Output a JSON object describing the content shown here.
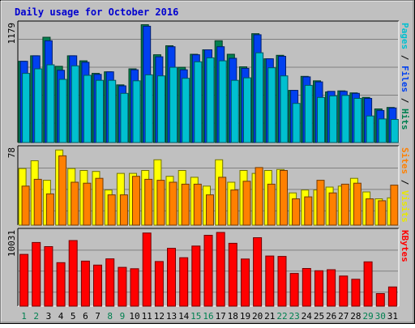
{
  "chart_data": {
    "type": "bar",
    "title": "Daily usage for October 2016",
    "categories": [
      "1",
      "2",
      "3",
      "4",
      "5",
      "6",
      "7",
      "8",
      "9",
      "10",
      "11",
      "12",
      "13",
      "14",
      "15",
      "16",
      "17",
      "18",
      "19",
      "20",
      "21",
      "22",
      "23",
      "24",
      "25",
      "26",
      "27",
      "28",
      "29",
      "30",
      "31"
    ],
    "weekend_days": [
      "1",
      "2",
      "8",
      "9",
      "15",
      "16",
      "22",
      "23",
      "29",
      "30"
    ],
    "panels": [
      {
        "id": "pages-files-hits",
        "max_label": "1179",
        "ymax": 1179,
        "right_labels": [
          {
            "text": "Pages",
            "color": "#00c0d0"
          },
          {
            "text": " / ",
            "color": "#000000"
          },
          {
            "text": "Files",
            "color": "#0040f0"
          },
          {
            "text": " / ",
            "color": "#000000"
          },
          {
            "text": "Hits",
            "color": "#008050"
          }
        ],
        "series": [
          {
            "name": "Hits",
            "color": "#008050",
            "values": [
              810,
              865,
              1050,
              760,
              865,
              815,
              690,
              705,
              575,
              735,
              1175,
              875,
              965,
              750,
              880,
              925,
              1015,
              880,
              755,
              1085,
              835,
              870,
              520,
              660,
              615,
              505,
              515,
              495,
              450,
              335,
              350
            ]
          },
          {
            "name": "Files",
            "color": "#0040f0",
            "values": [
              810,
              865,
              1015,
              720,
              865,
              800,
              680,
              705,
              565,
              725,
              1160,
              855,
              955,
              725,
              875,
              925,
              955,
              840,
              740,
              1075,
              835,
              860,
              520,
              655,
              605,
              510,
              510,
              490,
              440,
              320,
              345
            ]
          },
          {
            "name": "Pages",
            "color": "#00c0d0",
            "values": [
              690,
              735,
              775,
              630,
              765,
              670,
              620,
              620,
              490,
              615,
              675,
              665,
              750,
              640,
              805,
              845,
              815,
              620,
              645,
              895,
              745,
              665,
              390,
              570,
              450,
              465,
              470,
              440,
              265,
              235,
              230
            ]
          }
        ]
      },
      {
        "id": "visits-sites",
        "max_label": "78",
        "ymax": 78,
        "right_labels": [
          {
            "text": "Sites",
            "color": "#ff8000"
          },
          {
            "text": " / ",
            "color": "#000000"
          },
          {
            "text": "Visits",
            "color": "#e8e800"
          }
        ],
        "series": [
          {
            "name": "Visits",
            "color": "#ffff00",
            "values": [
              58,
              66,
              46,
              77,
              58,
              56,
              55,
              36,
              53,
              53,
              56,
              67,
              50,
              56,
              49,
              40,
              67,
              44,
              56,
              53,
              56,
              57,
              33,
              36,
              36,
              39,
              40,
              48,
              34,
              27,
              28
            ]
          },
          {
            "name": "Sites",
            "color": "#ff8000",
            "values": [
              40,
              47,
              32,
              71,
              44,
              43,
              48,
              31,
              31,
              50,
              47,
              46,
              44,
              42,
              42,
              31,
              49,
              36,
              45,
              59,
              42,
              56,
              27,
              29,
              46,
              33,
              42,
              43,
              27,
              25,
              41
            ]
          }
        ]
      },
      {
        "id": "kbytes",
        "max_label": "10031",
        "ymax": 10031,
        "right_labels": [
          {
            "text": "KBytes",
            "color": "#ff0000"
          }
        ],
        "series": [
          {
            "name": "KBytes",
            "color": "#ff0000",
            "values": [
              6965,
              8565,
              8015,
              5855,
              8830,
              6065,
              5530,
              6365,
              5220,
              5035,
              9845,
              6010,
              7790,
              6520,
              8085,
              9540,
              9920,
              8460,
              6350,
              9215,
              6750,
              6700,
              4405,
              5070,
              4770,
              4905,
              4055,
              3615,
              5965,
              1695,
              2580
            ]
          }
        ]
      }
    ]
  }
}
